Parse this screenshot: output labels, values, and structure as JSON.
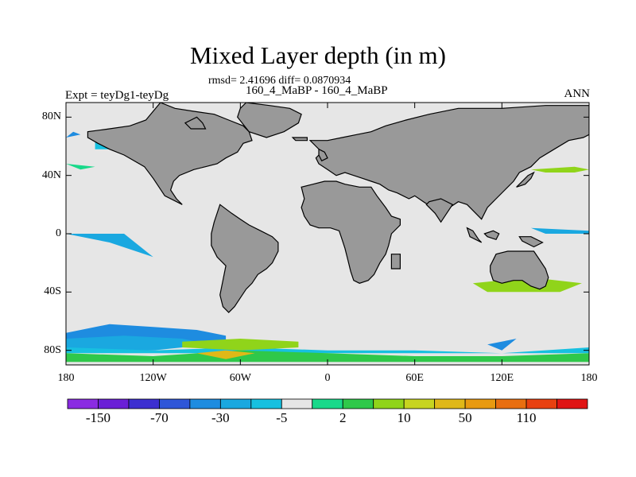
{
  "header": {
    "title": "Mixed Layer depth (in m)",
    "subtitle": "rmsd= 2.41696 diff= 0.0870934",
    "experiment": "160_4_MaBP - 160_4_MaBP",
    "left_label": "Expt = teyDg1-teyDg",
    "right_label": "ANN"
  },
  "axes": {
    "lat_ticks": [
      {
        "value": 80,
        "label": "80N"
      },
      {
        "value": 40,
        "label": "40N"
      },
      {
        "value": 0,
        "label": "0"
      },
      {
        "value": -40,
        "label": "40S"
      },
      {
        "value": -80,
        "label": "80S"
      }
    ],
    "lon_ticks": [
      {
        "value": -180,
        "label": "180"
      },
      {
        "value": -120,
        "label": "120W"
      },
      {
        "value": -60,
        "label": "60W"
      },
      {
        "value": 0,
        "label": "0"
      },
      {
        "value": 60,
        "label": "60E"
      },
      {
        "value": 120,
        "label": "120E"
      },
      {
        "value": 180,
        "label": "180"
      }
    ]
  },
  "colors": {
    "ocean": "#e6e6e6",
    "land": "#999999",
    "coast": "#000000"
  },
  "colorbar": {
    "colors": [
      "#8a2be2",
      "#6a1fd6",
      "#3c2fd0",
      "#2f56d8",
      "#1e8ce0",
      "#1aa8e0",
      "#17c0e0",
      "#e6e6e6",
      "#19d98a",
      "#2fc84a",
      "#90d41a",
      "#c7d420",
      "#e0b818",
      "#e89a10",
      "#e86e10",
      "#e84010",
      "#e01414"
    ],
    "labels": [
      {
        "index": 1,
        "text": "-150"
      },
      {
        "index": 3,
        "text": "-70"
      },
      {
        "index": 5,
        "text": "-30"
      },
      {
        "index": 7,
        "text": "-5"
      },
      {
        "index": 9,
        "text": "2"
      },
      {
        "index": 11,
        "text": "10"
      },
      {
        "index": 13,
        "text": "50"
      },
      {
        "index": 15,
        "text": "110"
      }
    ]
  },
  "fields": {
    "land_lonlat": [
      [
        [
          -115,
          90
        ],
        [
          -105,
          86
        ],
        [
          -92,
          84
        ],
        [
          -78,
          82
        ],
        [
          -68,
          78
        ],
        [
          -58,
          74
        ],
        [
          -54,
          70
        ],
        [
          -52,
          64
        ],
        [
          -58,
          62
        ],
        [
          -62,
          56
        ],
        [
          -70,
          52
        ],
        [
          -76,
          48
        ],
        [
          -84,
          46
        ],
        [
          -92,
          44
        ],
        [
          -102,
          40
        ],
        [
          -106,
          36
        ],
        [
          -108,
          30
        ],
        [
          -104,
          24
        ],
        [
          -100,
          20
        ],
        [
          -112,
          26
        ],
        [
          -116,
          32
        ],
        [
          -120,
          38
        ],
        [
          -126,
          46
        ],
        [
          -140,
          54
        ],
        [
          -150,
          58
        ],
        [
          -158,
          62
        ],
        [
          -165,
          66
        ],
        [
          -165,
          70
        ],
        [
          -150,
          72
        ],
        [
          -136,
          74
        ],
        [
          -125,
          78
        ],
        [
          -115,
          90
        ]
      ],
      [
        [
          -56,
          90
        ],
        [
          -40,
          88
        ],
        [
          -26,
          86
        ],
        [
          -18,
          82
        ],
        [
          -20,
          76
        ],
        [
          -30,
          70
        ],
        [
          -42,
          66
        ],
        [
          -54,
          70
        ],
        [
          -62,
          80
        ],
        [
          -60,
          86
        ],
        [
          -56,
          90
        ]
      ],
      [
        [
          -90,
          80
        ],
        [
          -86,
          76
        ],
        [
          -84,
          72
        ],
        [
          -94,
          72
        ],
        [
          -98,
          76
        ],
        [
          -90,
          80
        ]
      ],
      [
        [
          -74,
          20
        ],
        [
          -66,
          14
        ],
        [
          -60,
          10
        ],
        [
          -54,
          6
        ],
        [
          -46,
          2
        ],
        [
          -38,
          -2
        ],
        [
          -34,
          -6
        ],
        [
          -34,
          -12
        ],
        [
          -38,
          -20
        ],
        [
          -42,
          -24
        ],
        [
          -48,
          -28
        ],
        [
          -52,
          -34
        ],
        [
          -56,
          -38
        ],
        [
          -60,
          -44
        ],
        [
          -64,
          -50
        ],
        [
          -68,
          -54
        ],
        [
          -72,
          -50
        ],
        [
          -74,
          -42
        ],
        [
          -72,
          -32
        ],
        [
          -70,
          -22
        ],
        [
          -76,
          -16
        ],
        [
          -80,
          -8
        ],
        [
          -80,
          0
        ],
        [
          -78,
          8
        ],
        [
          -74,
          20
        ]
      ],
      [
        [
          -12,
          64
        ],
        [
          -8,
          60
        ],
        [
          -4,
          56
        ],
        [
          -8,
          52
        ],
        [
          -6,
          48
        ],
        [
          0,
          44
        ],
        [
          6,
          40
        ],
        [
          12,
          42
        ],
        [
          18,
          40
        ],
        [
          24,
          38
        ],
        [
          30,
          36
        ],
        [
          36,
          34
        ],
        [
          42,
          30
        ],
        [
          48,
          28
        ],
        [
          56,
          24
        ],
        [
          60,
          26
        ],
        [
          66,
          22
        ],
        [
          72,
          18
        ],
        [
          78,
          12
        ],
        [
          84,
          18
        ],
        [
          90,
          22
        ],
        [
          96,
          20
        ],
        [
          102,
          14
        ],
        [
          106,
          10
        ],
        [
          110,
          18
        ],
        [
          116,
          24
        ],
        [
          122,
          30
        ],
        [
          128,
          36
        ],
        [
          132,
          42
        ],
        [
          140,
          46
        ],
        [
          146,
          52
        ],
        [
          156,
          58
        ],
        [
          166,
          64
        ],
        [
          176,
          66
        ],
        [
          180,
          68
        ],
        [
          180,
          88
        ],
        [
          150,
          88
        ],
        [
          120,
          86
        ],
        [
          90,
          86
        ],
        [
          70,
          82
        ],
        [
          54,
          78
        ],
        [
          40,
          74
        ],
        [
          30,
          70
        ],
        [
          20,
          68
        ],
        [
          10,
          66
        ],
        [
          0,
          64
        ],
        [
          -12,
          64
        ]
      ],
      [
        [
          -18,
          32
        ],
        [
          -16,
          24
        ],
        [
          -18,
          18
        ],
        [
          -16,
          12
        ],
        [
          -12,
          6
        ],
        [
          -6,
          4
        ],
        [
          2,
          4
        ],
        [
          8,
          2
        ],
        [
          10,
          -4
        ],
        [
          12,
          -10
        ],
        [
          14,
          -18
        ],
        [
          16,
          -26
        ],
        [
          18,
          -32
        ],
        [
          22,
          -34
        ],
        [
          28,
          -32
        ],
        [
          32,
          -28
        ],
        [
          36,
          -20
        ],
        [
          40,
          -14
        ],
        [
          42,
          -8
        ],
        [
          44,
          0
        ],
        [
          50,
          6
        ],
        [
          50,
          10
        ],
        [
          44,
          12
        ],
        [
          40,
          18
        ],
        [
          34,
          26
        ],
        [
          30,
          32
        ],
        [
          22,
          32
        ],
        [
          12,
          34
        ],
        [
          6,
          36
        ],
        [
          -2,
          36
        ],
        [
          -10,
          34
        ],
        [
          -18,
          32
        ]
      ],
      [
        [
          68,
          20
        ],
        [
          74,
          14
        ],
        [
          78,
          8
        ],
        [
          82,
          14
        ],
        [
          86,
          20
        ],
        [
          78,
          24
        ],
        [
          70,
          22
        ],
        [
          68,
          20
        ]
      ],
      [
        [
          44,
          -14
        ],
        [
          50,
          -14
        ],
        [
          50,
          -24
        ],
        [
          44,
          -24
        ],
        [
          44,
          -14
        ]
      ],
      [
        [
          112,
          -22
        ],
        [
          116,
          -14
        ],
        [
          124,
          -12
        ],
        [
          130,
          -12
        ],
        [
          136,
          -12
        ],
        [
          142,
          -12
        ],
        [
          146,
          -18
        ],
        [
          150,
          -24
        ],
        [
          152,
          -30
        ],
        [
          150,
          -36
        ],
        [
          146,
          -38
        ],
        [
          140,
          -36
        ],
        [
          134,
          -32
        ],
        [
          128,
          -32
        ],
        [
          120,
          -34
        ],
        [
          114,
          -32
        ],
        [
          112,
          -26
        ],
        [
          112,
          -22
        ]
      ],
      [
        [
          96,
          4
        ],
        [
          100,
          2
        ],
        [
          104,
          -4
        ],
        [
          106,
          -6
        ],
        [
          98,
          -2
        ],
        [
          96,
          4
        ]
      ],
      [
        [
          108,
          0
        ],
        [
          114,
          2
        ],
        [
          118,
          0
        ],
        [
          116,
          -4
        ],
        [
          110,
          -2
        ],
        [
          108,
          0
        ]
      ],
      [
        [
          132,
          -2
        ],
        [
          140,
          -2
        ],
        [
          148,
          -6
        ],
        [
          142,
          -9
        ],
        [
          134,
          -5
        ],
        [
          132,
          -2
        ]
      ],
      [
        [
          130,
          32
        ],
        [
          136,
          34
        ],
        [
          140,
          38
        ],
        [
          142,
          42
        ],
        [
          138,
          40
        ],
        [
          132,
          34
        ],
        [
          130,
          32
        ]
      ],
      [
        [
          -6,
          58
        ],
        [
          -2,
          56
        ],
        [
          0,
          52
        ],
        [
          -4,
          50
        ],
        [
          -6,
          54
        ],
        [
          -6,
          58
        ]
      ],
      [
        [
          -24,
          66
        ],
        [
          -14,
          66
        ],
        [
          -14,
          64
        ],
        [
          -22,
          64
        ],
        [
          -24,
          66
        ]
      ]
    ],
    "anomalies_lonlat": [
      {
        "c": 4,
        "pts": [
          [
            -180,
            -68
          ],
          [
            -150,
            -62
          ],
          [
            -120,
            -64
          ],
          [
            -90,
            -66
          ],
          [
            -70,
            -70
          ],
          [
            -70,
            -76
          ],
          [
            -110,
            -74
          ],
          [
            -150,
            -76
          ],
          [
            -180,
            -74
          ]
        ]
      },
      {
        "c": 5,
        "pts": [
          [
            -180,
            -72
          ],
          [
            -140,
            -70
          ],
          [
            -100,
            -72
          ],
          [
            -80,
            -76
          ],
          [
            -120,
            -80
          ],
          [
            -180,
            -80
          ]
        ]
      },
      {
        "c": 6,
        "pts": [
          [
            -180,
            -78
          ],
          [
            -120,
            -80
          ],
          [
            -60,
            -78
          ],
          [
            0,
            -80
          ],
          [
            60,
            -80
          ],
          [
            120,
            -82
          ],
          [
            180,
            -78
          ],
          [
            180,
            -82
          ],
          [
            -180,
            -82
          ]
        ]
      },
      {
        "c": 9,
        "pts": [
          [
            -180,
            -82
          ],
          [
            -120,
            -84
          ],
          [
            -60,
            -80
          ],
          [
            0,
            -82
          ],
          [
            60,
            -84
          ],
          [
            120,
            -84
          ],
          [
            180,
            -82
          ],
          [
            180,
            -88
          ],
          [
            -180,
            -88
          ]
        ]
      },
      {
        "c": 10,
        "pts": [
          [
            -100,
            -74
          ],
          [
            -60,
            -72
          ],
          [
            -20,
            -74
          ],
          [
            -20,
            -78
          ],
          [
            -60,
            -80
          ],
          [
            -100,
            -78
          ]
        ]
      },
      {
        "c": 12,
        "pts": [
          [
            -90,
            -82
          ],
          [
            -70,
            -80
          ],
          [
            -50,
            -82
          ],
          [
            -70,
            -86
          ]
        ]
      },
      {
        "c": 10,
        "pts": [
          [
            100,
            -34
          ],
          [
            140,
            -30
          ],
          [
            175,
            -34
          ],
          [
            160,
            -40
          ],
          [
            110,
            -40
          ]
        ]
      },
      {
        "c": 10,
        "pts": [
          [
            140,
            44
          ],
          [
            170,
            46
          ],
          [
            180,
            44
          ],
          [
            170,
            42
          ],
          [
            150,
            42
          ]
        ]
      },
      {
        "c": 8,
        "pts": [
          [
            -180,
            48
          ],
          [
            -160,
            46
          ],
          [
            -170,
            44
          ]
        ]
      },
      {
        "c": 5,
        "pts": [
          [
            -180,
            0
          ],
          [
            -140,
            0
          ],
          [
            -120,
            -16
          ],
          [
            -150,
            -6
          ]
        ]
      },
      {
        "c": 6,
        "pts": [
          [
            -160,
            58
          ],
          [
            -120,
            58
          ],
          [
            -110,
            64
          ],
          [
            -160,
            66
          ]
        ]
      },
      {
        "c": 4,
        "pts": [
          [
            -150,
            68
          ],
          [
            -140,
            68
          ],
          [
            -145,
            70
          ]
        ]
      },
      {
        "c": 5,
        "pts": [
          [
            140,
            4
          ],
          [
            180,
            2
          ],
          [
            180,
            0
          ],
          [
            150,
            0
          ]
        ]
      },
      {
        "c": 4,
        "pts": [
          [
            110,
            -76
          ],
          [
            130,
            -72
          ],
          [
            120,
            -80
          ]
        ]
      },
      {
        "c": 4,
        "pts": [
          [
            -180,
            66
          ],
          [
            -170,
            68
          ],
          [
            -175,
            70
          ]
        ]
      }
    ]
  }
}
